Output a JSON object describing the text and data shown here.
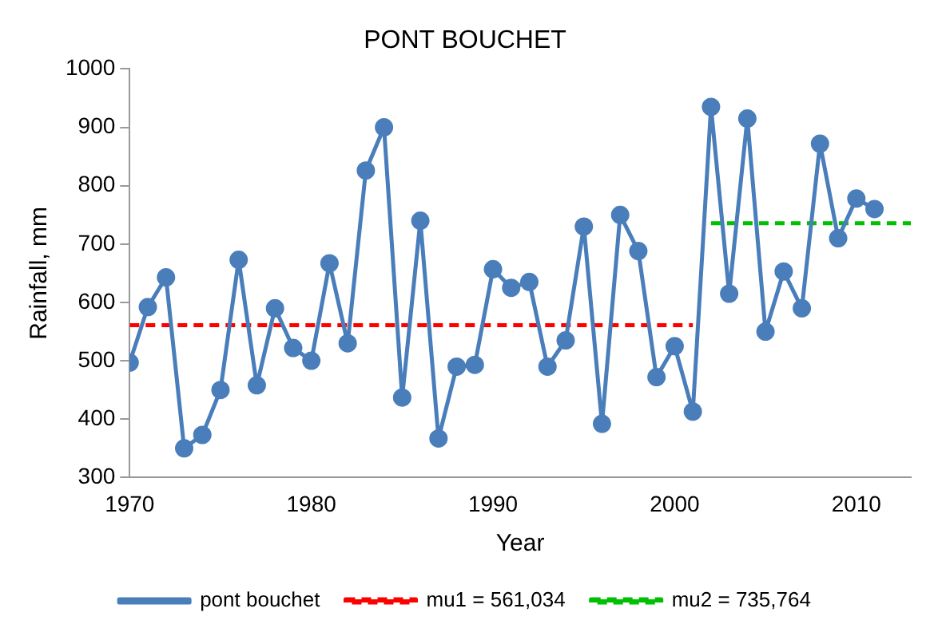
{
  "chart_data": {
    "type": "line",
    "title": "PONT BOUCHET",
    "xlabel": "Year",
    "ylabel": "Rainfall, mm",
    "x": [
      1970,
      1971,
      1972,
      1973,
      1974,
      1975,
      1976,
      1977,
      1978,
      1979,
      1980,
      1981,
      1982,
      1983,
      1984,
      1985,
      1986,
      1987,
      1988,
      1989,
      1990,
      1991,
      1992,
      1993,
      1994,
      1995,
      1996,
      1997,
      1998,
      1999,
      2000,
      2001,
      2002,
      2003,
      2004,
      2005,
      2006,
      2007,
      2008,
      2009,
      2010,
      2011
    ],
    "series": [
      {
        "name": "pont bouchet",
        "color": "#4a7ebb",
        "marker": "circle",
        "line_style": "solid",
        "values": [
          497,
          592,
          643,
          350,
          373,
          450,
          673,
          458,
          590,
          522,
          500,
          667,
          530,
          826,
          900,
          437,
          740,
          367,
          490,
          493,
          657,
          625,
          635,
          490,
          535,
          730,
          392,
          750,
          688,
          472,
          525,
          413,
          935,
          615,
          915,
          550,
          653,
          590,
          872,
          710,
          778,
          760
        ]
      },
      {
        "name": "mu1 = 561,034",
        "color": "#ff0000",
        "marker": "none",
        "line_style": "dashed",
        "x": [
          1970,
          2001
        ],
        "values": [
          561.034,
          561.034
        ]
      },
      {
        "name": "mu2 = 735,764",
        "color": "#00c000",
        "marker": "none",
        "line_style": "dashed",
        "x": [
          2002,
          2013
        ],
        "values": [
          735.764,
          735.764
        ]
      }
    ],
    "xlim": [
      1970,
      2013
    ],
    "xticks": [
      1970,
      1980,
      1990,
      2000,
      2010
    ],
    "ylim": [
      300,
      1000
    ],
    "yticks": [
      300,
      400,
      500,
      600,
      700,
      800,
      900,
      1000
    ],
    "grid": false,
    "legend": "bottom"
  }
}
